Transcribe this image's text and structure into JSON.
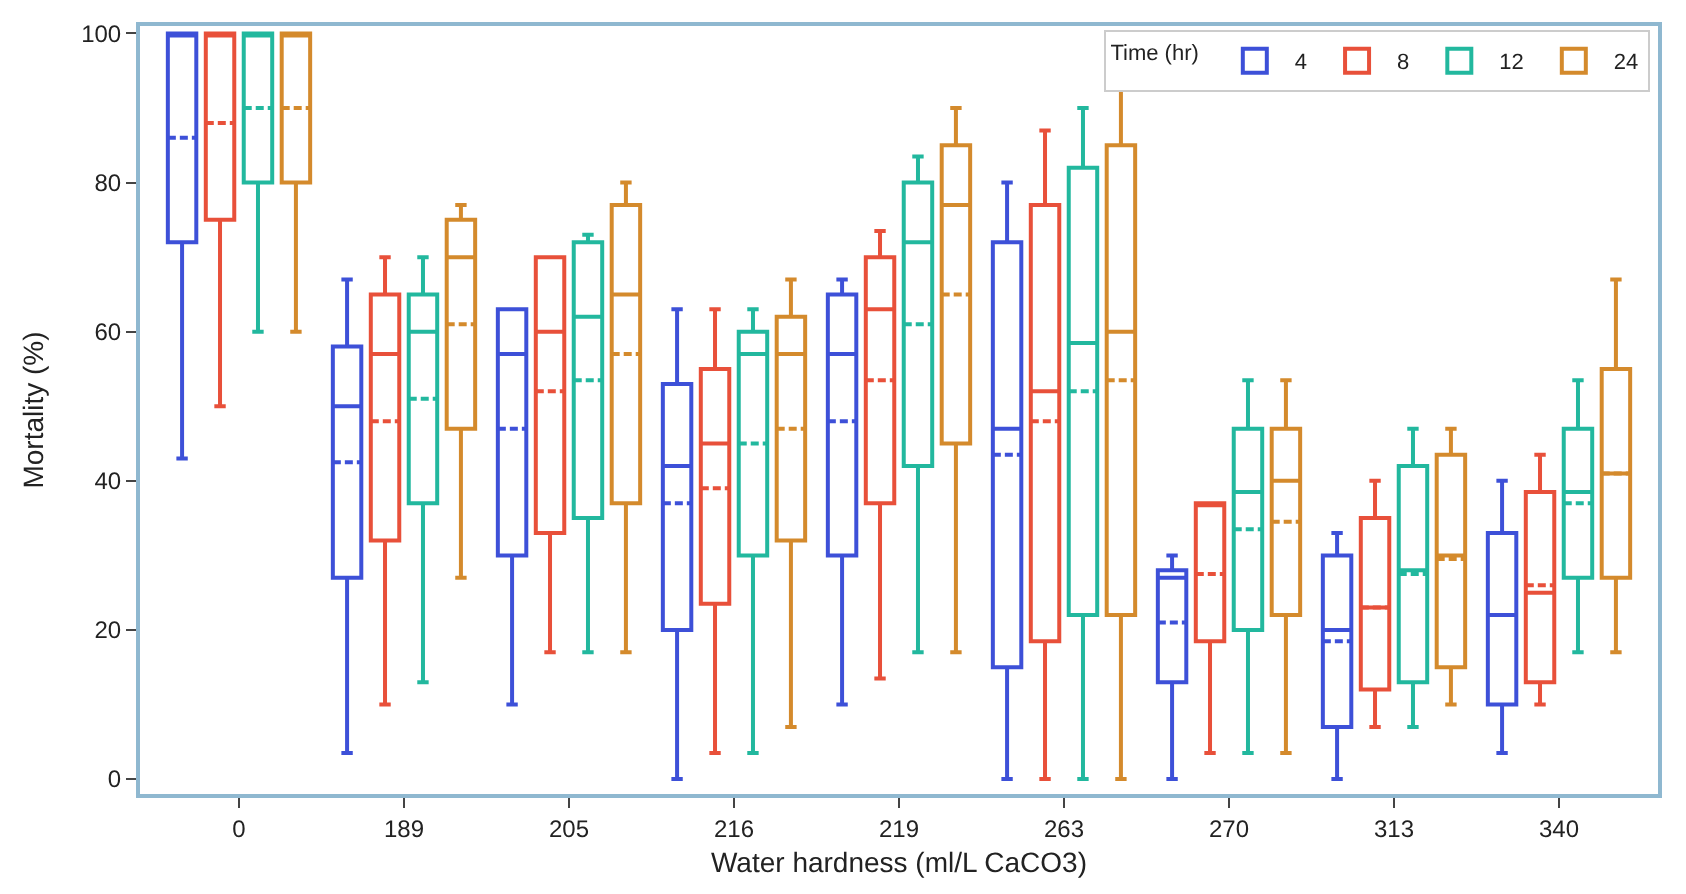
{
  "chart_data": {
    "type": "box",
    "xlabel": "Water hardness (ml/L CaCO3)",
    "ylabel": "Mortality (%)",
    "legend_title": "Time (hr)",
    "legend": "top right",
    "grid": false,
    "categories": [
      "0",
      "189",
      "205",
      "216",
      "219",
      "263",
      "270",
      "313",
      "340"
    ],
    "ylim": [
      -2,
      101
    ],
    "yticks": [
      0,
      20,
      40,
      60,
      80,
      100
    ],
    "series": [
      {
        "name": "4",
        "color": "#3d50d8",
        "boxes": [
          {
            "low": 43,
            "q1": 72,
            "median": 100,
            "q3": 100,
            "high": 100,
            "mean": 86
          },
          {
            "low": 3.5,
            "q1": 27,
            "median": 50,
            "q3": 58,
            "high": 67,
            "mean": 42.5
          },
          {
            "low": 10,
            "q1": 30,
            "median": 57,
            "q3": 63,
            "high": 63,
            "mean": 47
          },
          {
            "low": 0,
            "q1": 20,
            "median": 42,
            "q3": 53,
            "high": 63,
            "mean": 37
          },
          {
            "low": 10,
            "q1": 30,
            "median": 57,
            "q3": 65,
            "high": 67,
            "mean": 48
          },
          {
            "low": 0,
            "q1": 15,
            "median": 47,
            "q3": 72,
            "high": 80,
            "mean": 43.5
          },
          {
            "low": 0,
            "q1": 13,
            "median": 27,
            "q3": 28,
            "high": 30,
            "mean": 21
          },
          {
            "low": 0,
            "q1": 7,
            "median": 20,
            "q3": 30,
            "high": 33,
            "mean": 18.5
          },
          {
            "low": 3.5,
            "q1": 10,
            "median": 22,
            "q3": 33,
            "high": 40,
            "mean": 22
          }
        ]
      },
      {
        "name": "8",
        "color": "#e8503a",
        "boxes": [
          {
            "low": 50,
            "q1": 75,
            "median": 100,
            "q3": 100,
            "high": 100,
            "mean": 88
          },
          {
            "low": 10,
            "q1": 32,
            "median": 57,
            "q3": 65,
            "high": 70,
            "mean": 48
          },
          {
            "low": 17,
            "q1": 33,
            "median": 60,
            "q3": 70,
            "high": 70,
            "mean": 52
          },
          {
            "low": 3.5,
            "q1": 23.5,
            "median": 45,
            "q3": 55,
            "high": 63,
            "mean": 39
          },
          {
            "low": 13.5,
            "q1": 37,
            "median": 63,
            "q3": 70,
            "high": 73.5,
            "mean": 53.5
          },
          {
            "low": 0,
            "q1": 18.5,
            "median": 52,
            "q3": 77,
            "high": 87,
            "mean": 48
          },
          {
            "low": 3.5,
            "q1": 18.5,
            "median": 37,
            "q3": 37,
            "high": 37,
            "mean": 27.5
          },
          {
            "low": 7,
            "q1": 12,
            "median": 23,
            "q3": 35,
            "high": 40,
            "mean": 23
          },
          {
            "low": 10,
            "q1": 13,
            "median": 25,
            "q3": 38.5,
            "high": 43.5,
            "mean": 26
          }
        ]
      },
      {
        "name": "12",
        "color": "#22b89e",
        "boxes": [
          {
            "low": 60,
            "q1": 80,
            "median": 100,
            "q3": 100,
            "high": 100,
            "mean": 90
          },
          {
            "low": 13,
            "q1": 37,
            "median": 60,
            "q3": 65,
            "high": 70,
            "mean": 51
          },
          {
            "low": 17,
            "q1": 35,
            "median": 62,
            "q3": 72,
            "high": 73,
            "mean": 53.5
          },
          {
            "low": 3.5,
            "q1": 30,
            "median": 57,
            "q3": 60,
            "high": 63,
            "mean": 45
          },
          {
            "low": 17,
            "q1": 42,
            "median": 72,
            "q3": 80,
            "high": 83.5,
            "mean": 61
          },
          {
            "low": 0,
            "q1": 22,
            "median": 58.5,
            "q3": 82,
            "high": 90,
            "mean": 52
          },
          {
            "low": 3.5,
            "q1": 20,
            "median": 38.5,
            "q3": 47,
            "high": 53.5,
            "mean": 33.5
          },
          {
            "low": 7,
            "q1": 13,
            "median": 28,
            "q3": 42,
            "high": 47,
            "mean": 27.5
          },
          {
            "low": 17,
            "q1": 27,
            "median": 38.5,
            "q3": 47,
            "high": 53.5,
            "mean": 37
          }
        ]
      },
      {
        "name": "24",
        "color": "#d48a2c",
        "boxes": [
          {
            "low": 60,
            "q1": 80,
            "median": 100,
            "q3": 100,
            "high": 100,
            "mean": 90
          },
          {
            "low": 27,
            "q1": 47,
            "median": 70,
            "q3": 75,
            "high": 77,
            "mean": 61
          },
          {
            "low": 17,
            "q1": 37,
            "median": 65,
            "q3": 77,
            "high": 80,
            "mean": 57
          },
          {
            "low": 7,
            "q1": 32,
            "median": 57,
            "q3": 62,
            "high": 67,
            "mean": 47
          },
          {
            "low": 17,
            "q1": 45,
            "median": 77,
            "q3": 85,
            "high": 90,
            "mean": 65
          },
          {
            "low": 0,
            "q1": 22,
            "median": 60,
            "q3": 85,
            "high": 94,
            "mean": 53.5
          },
          {
            "low": 3.5,
            "q1": 22,
            "median": 40,
            "q3": 47,
            "high": 53.5,
            "mean": 34.5
          },
          {
            "low": 10,
            "q1": 15,
            "median": 30,
            "q3": 43.5,
            "high": 47,
            "mean": 29.5
          },
          {
            "low": 17,
            "q1": 27,
            "median": 41,
            "q3": 55,
            "high": 67,
            "mean": 41
          }
        ]
      }
    ]
  }
}
